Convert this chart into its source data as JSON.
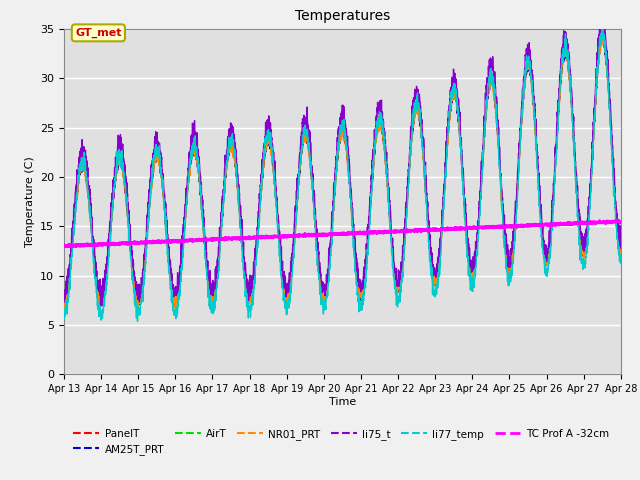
{
  "title": "Temperatures",
  "xlabel": "Time",
  "ylabel": "Temperature (C)",
  "xlim_days": 15,
  "ylim": [
    0,
    35
  ],
  "yticks": [
    0,
    5,
    10,
    15,
    20,
    25,
    30,
    35
  ],
  "xtick_labels": [
    "Apr 13",
    "Apr 14",
    "Apr 15",
    "Apr 16",
    "Apr 17",
    "Apr 18",
    "Apr 19",
    "Apr 20",
    "Apr 21",
    "Apr 22",
    "Apr 23",
    "Apr 24",
    "Apr 25",
    "Apr 26",
    "Apr 27",
    "Apr 28"
  ],
  "annotation_text": "GT_met",
  "colors": {
    "PanelT": "#FF0000",
    "AM25T_PRT": "#0000CC",
    "AirT": "#00DD00",
    "NR01_PRT": "#FF8800",
    "li75_t": "#8800CC",
    "li77_temp": "#00CCCC",
    "TC Prof A -32cm": "#FF00FF"
  },
  "fig_bg": "#F0F0F0",
  "ax_bg": "#E0E0E0"
}
